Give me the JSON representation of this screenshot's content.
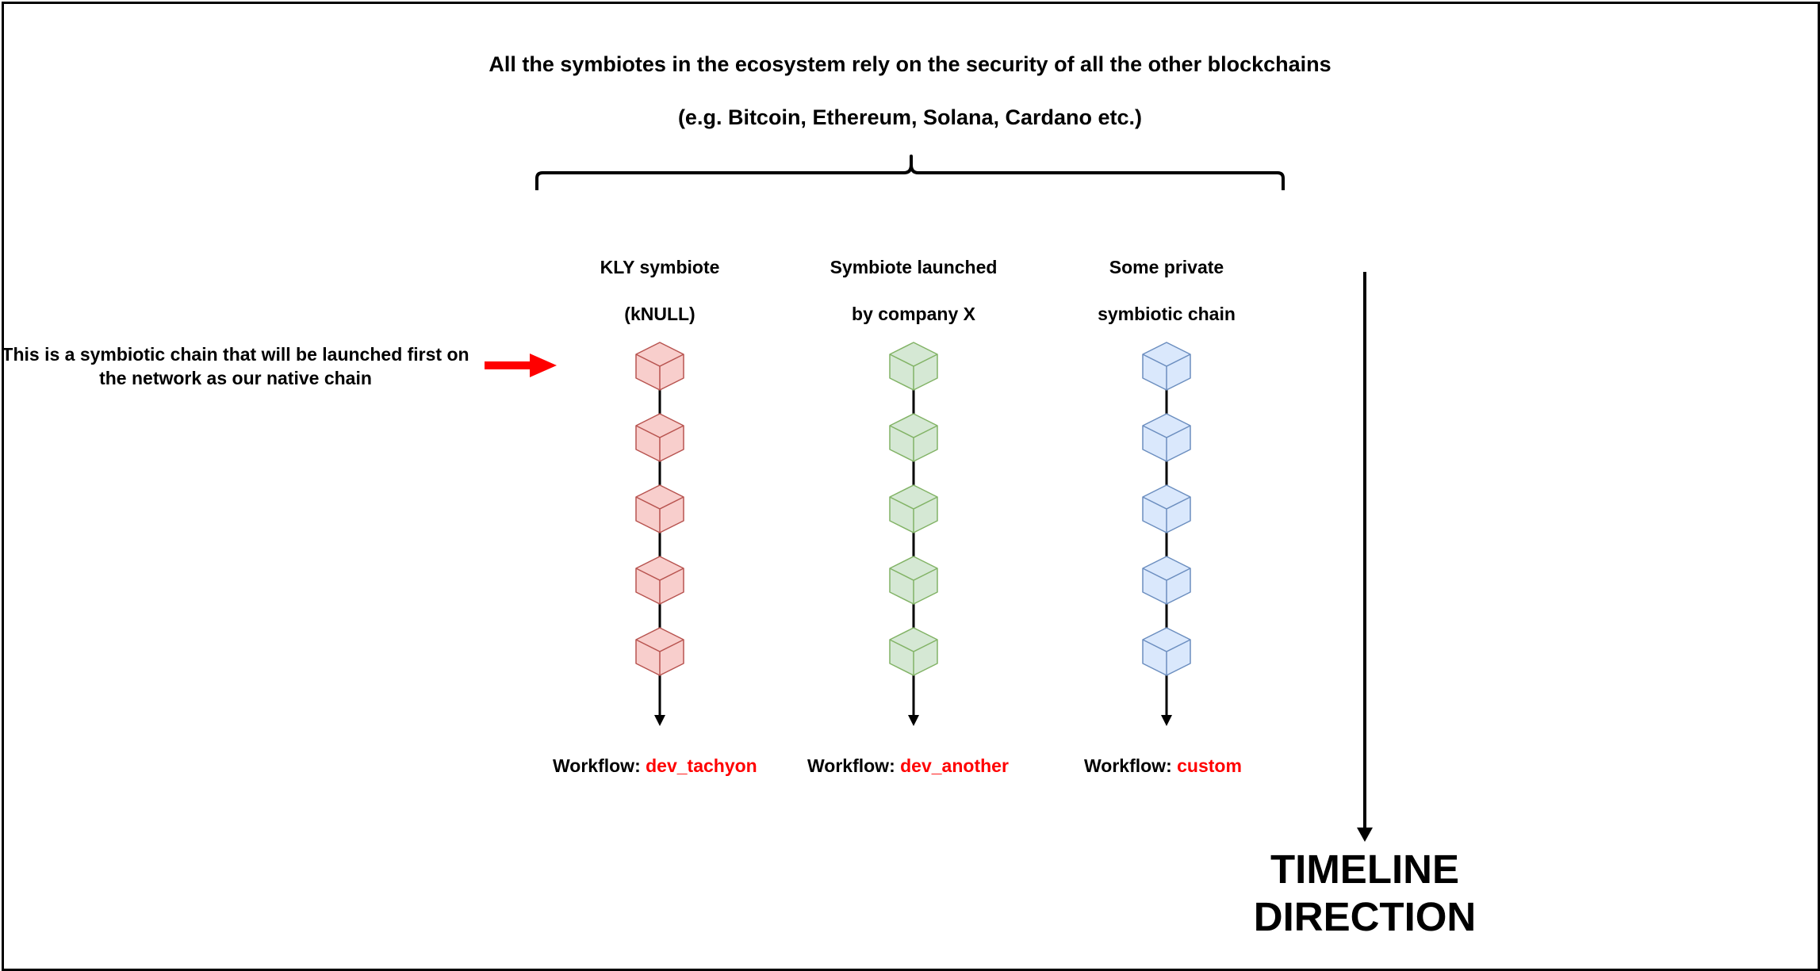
{
  "header": {
    "line1": "All the symbiotes in the ecosystem rely on the security of all the other blockchains",
    "line2": "(e.g. Bitcoin, Ethereum, Solana, Cardano etc.)"
  },
  "note": "This is a symbiotic chain that will be launched first on the network as our native chain",
  "chains": [
    {
      "title_line1": "KLY symbiote",
      "title_line2": "(kNULL)",
      "workflow_label": "Workflow: ",
      "workflow_value": "dev_tachyon",
      "block_count": 5,
      "fill": "#f8cecc",
      "stroke": "#b85450"
    },
    {
      "title_line1": "Symbiote launched",
      "title_line2": "by company X",
      "workflow_label": "Workflow: ",
      "workflow_value": "dev_another",
      "block_count": 5,
      "fill": "#d5e8d4",
      "stroke": "#82b366"
    },
    {
      "title_line1": "Some private",
      "title_line2": "symbiotic chain",
      "workflow_label": "Workflow: ",
      "workflow_value": "custom",
      "block_count": 5,
      "fill": "#dae8fc",
      "stroke": "#6c8ebf"
    }
  ],
  "timeline": {
    "line1": "TIMELINE",
    "line2": "DIRECTION"
  },
  "colors": {
    "accent": "#ff0000",
    "line": "#000000",
    "background": "#ffffff"
  },
  "icons": [
    "curly-brace",
    "red-arrow-right-icon",
    "down-arrow-icon",
    "cube-icon"
  ]
}
